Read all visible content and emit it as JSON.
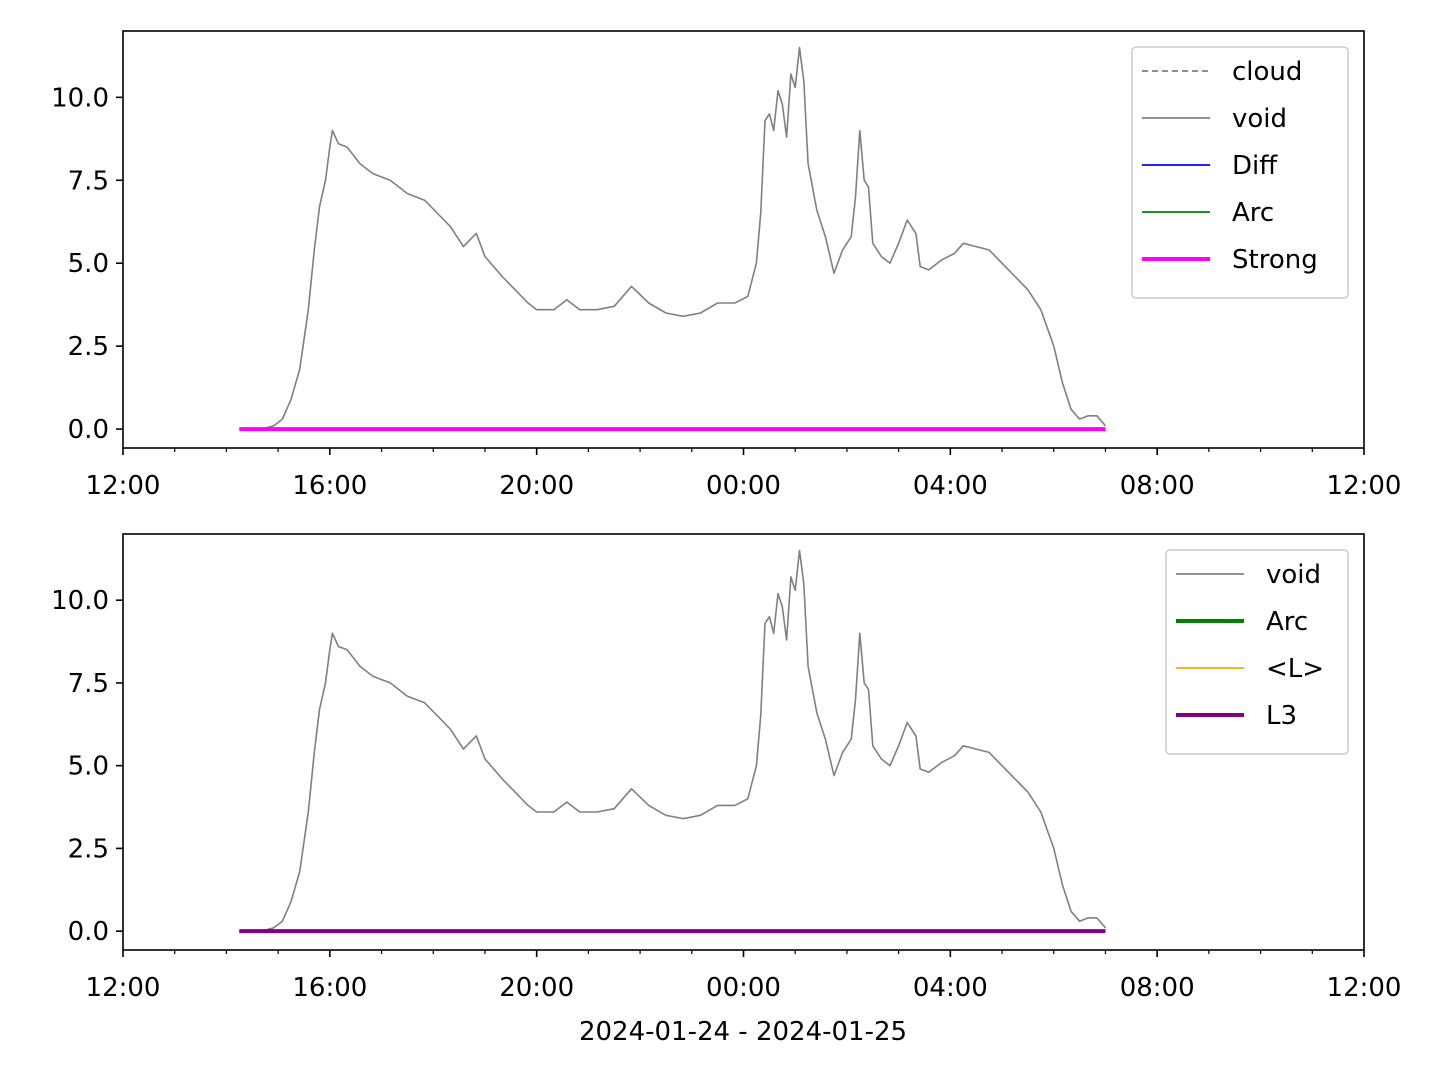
{
  "chart_data": [
    {
      "type": "line",
      "panel": "top",
      "x_axis": {
        "type": "time",
        "range": [
          "2024-01-24 12:00",
          "2024-01-25 12:00"
        ],
        "major_tick_labels": [
          "12:00",
          "16:00",
          "20:00",
          "00:00",
          "04:00",
          "08:00",
          "12:00"
        ],
        "minor_ticks_every_hours": 1
      },
      "y_axis": {
        "range": [
          -0.57,
          12.0
        ],
        "tick_labels": [
          "0.0",
          "2.5",
          "5.0",
          "7.5",
          "10.0"
        ]
      },
      "grid": false,
      "legend": {
        "placement": "top-right",
        "entries": [
          {
            "label": "cloud",
            "color": "#808080",
            "style": "dashed"
          },
          {
            "label": "void",
            "color": "#808080",
            "style": "solid"
          },
          {
            "label": "Diff",
            "color": "#0000ff",
            "style": "solid"
          },
          {
            "label": "Arc",
            "color": "#008000",
            "style": "solid"
          },
          {
            "label": "Strong",
            "color": "#ff00ff",
            "style": "solid-thick"
          }
        ]
      },
      "series": [
        {
          "name": "void",
          "color": "#808080",
          "points": [
            [
              "2024-01-24 14:15",
              0.0
            ],
            [
              "2024-01-24 14:40",
              0.0
            ],
            [
              "2024-01-24 14:55",
              0.1
            ],
            [
              "2024-01-24 15:05",
              0.3
            ],
            [
              "2024-01-24 15:15",
              0.9
            ],
            [
              "2024-01-24 15:25",
              1.8
            ],
            [
              "2024-01-24 15:35",
              3.6
            ],
            [
              "2024-01-24 15:42",
              5.4
            ],
            [
              "2024-01-24 15:48",
              6.7
            ],
            [
              "2024-01-24 15:55",
              7.5
            ],
            [
              "2024-01-24 16:00",
              8.5
            ],
            [
              "2024-01-24 16:03",
              9.0
            ],
            [
              "2024-01-24 16:10",
              8.6
            ],
            [
              "2024-01-24 16:20",
              8.5
            ],
            [
              "2024-01-24 16:35",
              8.0
            ],
            [
              "2024-01-24 16:50",
              7.7
            ],
            [
              "2024-01-24 17:10",
              7.5
            ],
            [
              "2024-01-24 17:30",
              7.1
            ],
            [
              "2024-01-24 17:50",
              6.9
            ],
            [
              "2024-01-24 18:05",
              6.5
            ],
            [
              "2024-01-24 18:20",
              6.1
            ],
            [
              "2024-01-24 18:35",
              5.5
            ],
            [
              "2024-01-24 18:50",
              5.9
            ],
            [
              "2024-01-24 19:00",
              5.2
            ],
            [
              "2024-01-24 19:20",
              4.6
            ],
            [
              "2024-01-24 19:35",
              4.2
            ],
            [
              "2024-01-24 19:50",
              3.8
            ],
            [
              "2024-01-24 20:00",
              3.6
            ],
            [
              "2024-01-24 20:20",
              3.6
            ],
            [
              "2024-01-24 20:35",
              3.9
            ],
            [
              "2024-01-24 20:50",
              3.6
            ],
            [
              "2024-01-24 21:10",
              3.6
            ],
            [
              "2024-01-24 21:30",
              3.7
            ],
            [
              "2024-01-24 21:50",
              4.3
            ],
            [
              "2024-01-24 22:10",
              3.8
            ],
            [
              "2024-01-24 22:30",
              3.5
            ],
            [
              "2024-01-24 22:50",
              3.4
            ],
            [
              "2024-01-24 23:10",
              3.5
            ],
            [
              "2024-01-24 23:30",
              3.8
            ],
            [
              "2024-01-24 23:50",
              3.8
            ],
            [
              "2024-01-25 00:05",
              4.0
            ],
            [
              "2024-01-25 00:15",
              5.0
            ],
            [
              "2024-01-25 00:20",
              6.5
            ],
            [
              "2024-01-25 00:25",
              9.3
            ],
            [
              "2024-01-25 00:30",
              9.5
            ],
            [
              "2024-01-25 00:35",
              9.0
            ],
            [
              "2024-01-25 00:40",
              10.2
            ],
            [
              "2024-01-25 00:45",
              9.8
            ],
            [
              "2024-01-25 00:50",
              8.8
            ],
            [
              "2024-01-25 00:55",
              10.7
            ],
            [
              "2024-01-25 01:00",
              10.3
            ],
            [
              "2024-01-25 01:05",
              11.5
            ],
            [
              "2024-01-25 01:10",
              10.5
            ],
            [
              "2024-01-25 01:15",
              8.0
            ],
            [
              "2024-01-25 01:25",
              6.6
            ],
            [
              "2024-01-25 01:35",
              5.8
            ],
            [
              "2024-01-25 01:45",
              4.7
            ],
            [
              "2024-01-25 01:55",
              5.4
            ],
            [
              "2024-01-25 02:05",
              5.8
            ],
            [
              "2024-01-25 02:10",
              7.0
            ],
            [
              "2024-01-25 02:15",
              9.0
            ],
            [
              "2024-01-25 02:20",
              7.5
            ],
            [
              "2024-01-25 02:25",
              7.3
            ],
            [
              "2024-01-25 02:30",
              5.6
            ],
            [
              "2024-01-25 02:40",
              5.2
            ],
            [
              "2024-01-25 02:50",
              5.0
            ],
            [
              "2024-01-25 03:00",
              5.6
            ],
            [
              "2024-01-25 03:10",
              6.3
            ],
            [
              "2024-01-25 03:20",
              5.9
            ],
            [
              "2024-01-25 03:25",
              4.9
            ],
            [
              "2024-01-25 03:35",
              4.8
            ],
            [
              "2024-01-25 03:50",
              5.1
            ],
            [
              "2024-01-25 04:05",
              5.3
            ],
            [
              "2024-01-25 04:15",
              5.6
            ],
            [
              "2024-01-25 04:30",
              5.5
            ],
            [
              "2024-01-25 04:45",
              5.4
            ],
            [
              "2024-01-25 05:00",
              5.0
            ],
            [
              "2024-01-25 05:15",
              4.6
            ],
            [
              "2024-01-25 05:30",
              4.2
            ],
            [
              "2024-01-25 05:45",
              3.6
            ],
            [
              "2024-01-25 06:00",
              2.5
            ],
            [
              "2024-01-25 06:10",
              1.4
            ],
            [
              "2024-01-25 06:20",
              0.6
            ],
            [
              "2024-01-25 06:30",
              0.3
            ],
            [
              "2024-01-25 06:40",
              0.4
            ],
            [
              "2024-01-25 06:50",
              0.4
            ],
            [
              "2024-01-25 07:00",
              0.1
            ]
          ]
        },
        {
          "name": "Strong",
          "color": "#ff00ff",
          "points": [
            [
              "2024-01-24 14:15",
              0.0
            ],
            [
              "2024-01-25 07:00",
              0.0
            ]
          ]
        }
      ]
    },
    {
      "type": "line",
      "panel": "bottom",
      "x_axis": {
        "type": "time",
        "range": [
          "2024-01-24 12:00",
          "2024-01-25 12:00"
        ],
        "major_tick_labels": [
          "12:00",
          "16:00",
          "20:00",
          "00:00",
          "04:00",
          "08:00",
          "12:00"
        ],
        "minor_ticks_every_hours": 1
      },
      "xlabel": "2024-01-24 - 2024-01-25",
      "y_axis": {
        "range": [
          -0.57,
          12.0
        ],
        "tick_labels": [
          "0.0",
          "2.5",
          "5.0",
          "7.5",
          "10.0"
        ]
      },
      "grid": false,
      "legend": {
        "placement": "top-right",
        "entries": [
          {
            "label": "void",
            "color": "#808080",
            "style": "solid"
          },
          {
            "label": "Arc",
            "color": "#008000",
            "style": "solid-thick"
          },
          {
            "label": "<L>",
            "color": "#ffa500",
            "style": "solid"
          },
          {
            "label": "L3",
            "color": "#800080",
            "style": "solid-thick"
          }
        ]
      },
      "series": [
        {
          "name": "void",
          "color": "#808080",
          "same_as_top_panel": true
        },
        {
          "name": "L3",
          "color": "#800080",
          "points": [
            [
              "2024-01-24 14:15",
              0.0
            ],
            [
              "2024-01-25 07:00",
              0.0
            ]
          ]
        }
      ]
    }
  ]
}
